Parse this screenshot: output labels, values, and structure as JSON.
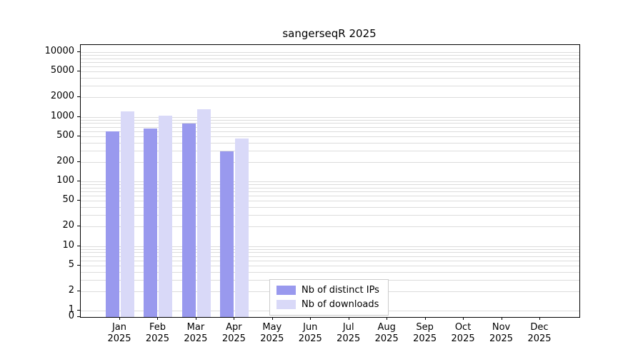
{
  "title": "sangerseqR 2025",
  "chart_data": {
    "type": "bar",
    "title": "sangerseqR 2025",
    "categories": [
      "Jan",
      "Feb",
      "Mar",
      "Apr",
      "May",
      "Jun",
      "Jul",
      "Aug",
      "Sep",
      "Oct",
      "Nov",
      "Dec"
    ],
    "year": "2025",
    "series": [
      {
        "name": "Nb of distinct IPs",
        "color": "#9999ee",
        "values": [
          600,
          650,
          780,
          290,
          null,
          null,
          null,
          null,
          null,
          null,
          null,
          null
        ]
      },
      {
        "name": "Nb of downloads",
        "color": "#d9d9f8",
        "values": [
          1200,
          1050,
          1300,
          460,
          null,
          null,
          null,
          null,
          null,
          null,
          null,
          null
        ]
      }
    ],
    "y_scale": "log",
    "y_ticks": [
      0,
      1,
      2,
      5,
      10,
      20,
      50,
      100,
      200,
      500,
      1000,
      2000,
      5000,
      10000
    ],
    "ylim": [
      0,
      13000
    ],
    "grid": "horizontal-log-minor",
    "legend_position": "bottom-center-inside",
    "legend_labels": [
      "Nb of distinct IPs",
      "Nb of downloads"
    ]
  }
}
